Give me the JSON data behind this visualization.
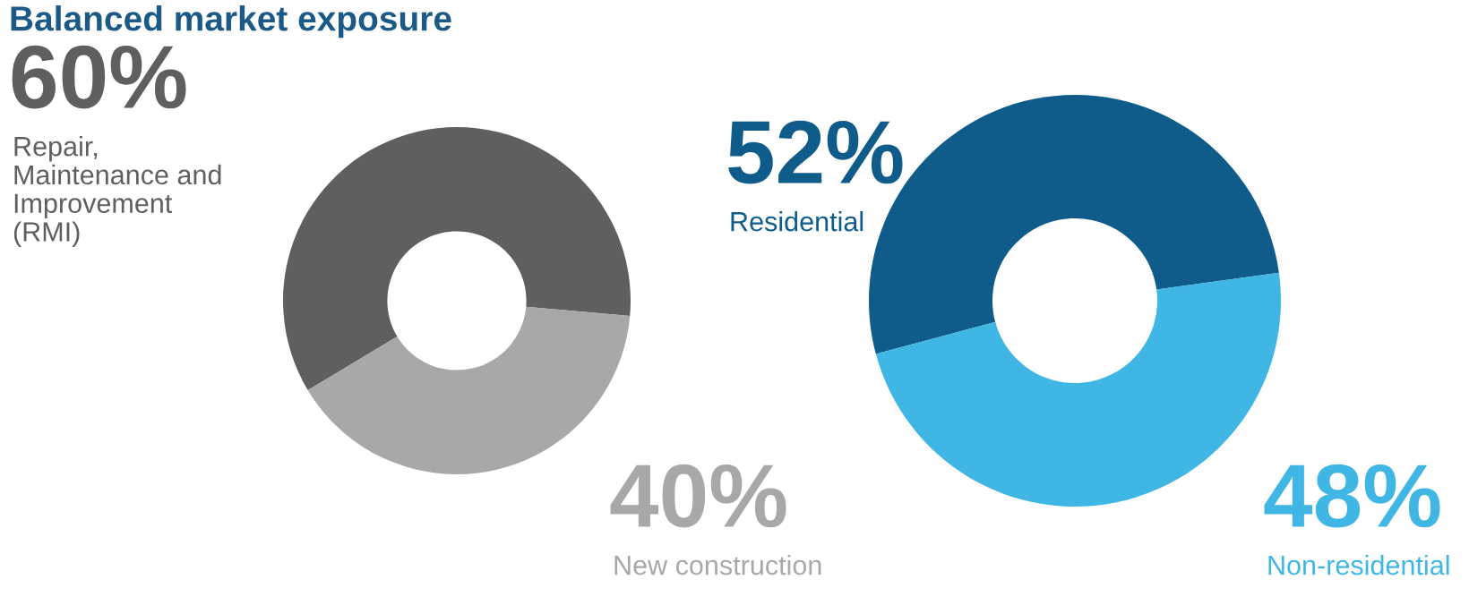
{
  "chart_data": [
    {
      "type": "donut",
      "title": "Balanced market exposure",
      "categories": [
        "Repair,\nMaintenance and\nImprovement\n(RMI)",
        "New construction"
      ],
      "values": [
        60,
        40
      ],
      "colors": [
        "#5f5f61",
        "#a8a8aa"
      ],
      "value_labels": [
        "60%",
        "40%"
      ]
    },
    {
      "type": "donut",
      "categories": [
        "Residential",
        "Non-residential"
      ],
      "values": [
        52,
        48
      ],
      "colors": [
        "#0f5b8a",
        "#3fb6e4"
      ],
      "value_labels": [
        "52%",
        "48%"
      ]
    }
  ]
}
